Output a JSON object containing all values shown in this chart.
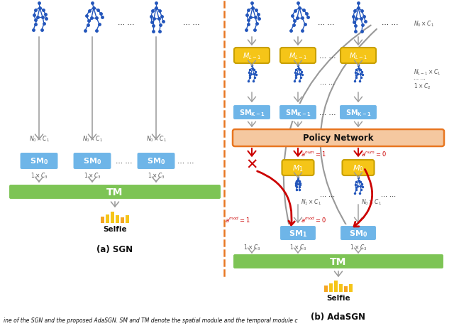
{
  "bg_color": "#ffffff",
  "divider_color": "#E87722",
  "sm_box_color": "#6EB5E8",
  "tm_box_color": "#7DC455",
  "m_box_color": "#F5C518",
  "policy_box_color": "#F5C8A0",
  "policy_box_edge": "#E87722",
  "arrow_color_gray": "#999999",
  "arrow_color_red": "#CC0000",
  "skeleton_color": "#2255BB",
  "bar_colors_a": [
    "#F5A623",
    "#F5C518",
    "#F5C518",
    "#F5C518",
    "#F5A623",
    "#F5C518"
  ],
  "bar_heights_a": [
    9,
    12,
    16,
    11,
    8,
    11
  ],
  "text_color": "#111111",
  "label_color": "#555555",
  "caption": "ine of the SGN and the proposed AdaSGN. SM and TM denote the spatial module and the temporal module c"
}
